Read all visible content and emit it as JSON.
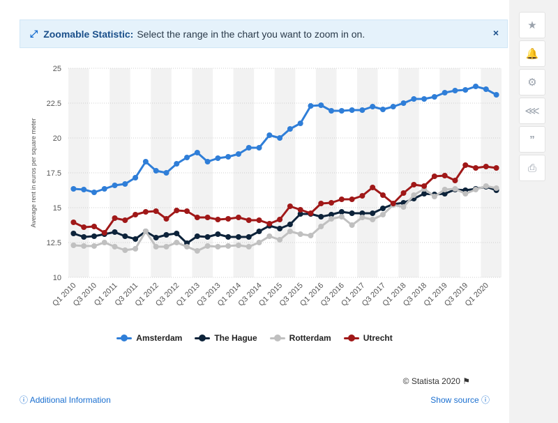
{
  "banner": {
    "title": "Zoomable Statistic:",
    "text": "Select the range in the chart you want to zoom in on.",
    "close": "×",
    "zoom_icon": "expand-arrows-icon"
  },
  "colors": {
    "Amsterdam": "#2f7ed8",
    "The Hague": "#0d233a",
    "Rotterdam": "#c0c0c0",
    "Utrecht": "#a01818",
    "band": "#f2f2f2",
    "grid": "#cfcfcf",
    "link": "#1a6fd0"
  },
  "chart_data": {
    "type": "line",
    "ylabel": "Average rent in euros per square meter",
    "xlabel": "",
    "ylim": [
      10,
      25
    ],
    "yticks": [
      10,
      12.5,
      15,
      17.5,
      20,
      22.5,
      25
    ],
    "grid": "horizontal dotted",
    "legend_position": "bottom-center",
    "x": [
      "Q1 2010",
      "Q2 2010",
      "Q3 2010",
      "Q4 2010",
      "Q1 2011",
      "Q2 2011",
      "Q3 2011",
      "Q4 2011",
      "Q1 2012",
      "Q2 2012",
      "Q3 2012",
      "Q4 2012",
      "Q1 2013",
      "Q2 2013",
      "Q3 2013",
      "Q4 2013",
      "Q1 2014",
      "Q2 2014",
      "Q3 2014",
      "Q4 2014",
      "Q1 2015",
      "Q2 2015",
      "Q3 2015",
      "Q4 2015",
      "Q1 2016",
      "Q2 2016",
      "Q3 2016",
      "Q4 2016",
      "Q1 2017",
      "Q2 2017",
      "Q3 2017",
      "Q4 2017",
      "Q1 2018",
      "Q2 2018",
      "Q3 2018",
      "Q4 2018",
      "Q1 2019",
      "Q2 2019",
      "Q3 2019",
      "Q4 2019",
      "Q1 2020",
      "Q2 2020"
    ],
    "x_tick_labels": [
      "Q1 2010",
      "Q3 2010",
      "Q1 2011",
      "Q3 2011",
      "Q1 2012",
      "Q3 2012",
      "Q1 2013",
      "Q3 2013",
      "Q1 2014",
      "Q3 2014",
      "Q1 2015",
      "Q3 2015",
      "Q1 2016",
      "Q3 2016",
      "Q1 2017",
      "Q3 2017",
      "Q1 2018",
      "Q3 2018",
      "Q1 2019",
      "Q3 2019",
      "Q1 2020"
    ],
    "series": [
      {
        "name": "Amsterdam",
        "values": [
          16.35,
          16.3,
          16.1,
          16.35,
          16.6,
          16.7,
          17.15,
          18.3,
          17.65,
          17.5,
          18.15,
          18.6,
          18.95,
          18.3,
          18.55,
          18.65,
          18.85,
          19.3,
          19.3,
          20.2,
          20.0,
          20.65,
          21.05,
          22.3,
          22.35,
          21.95,
          21.95,
          22.0,
          22.0,
          22.25,
          22.05,
          22.25,
          22.5,
          22.8,
          22.8,
          22.95,
          23.25,
          23.4,
          23.45,
          23.7,
          23.5,
          23.1
        ]
      },
      {
        "name": "The Hague",
        "values": [
          13.15,
          12.9,
          12.95,
          13.1,
          13.25,
          12.95,
          12.75,
          13.3,
          12.85,
          13.05,
          13.15,
          12.45,
          12.95,
          12.9,
          13.1,
          12.9,
          12.9,
          12.9,
          13.3,
          13.7,
          13.5,
          13.8,
          14.55,
          14.55,
          14.35,
          14.5,
          14.7,
          14.6,
          14.6,
          14.6,
          14.95,
          15.25,
          15.35,
          15.65,
          16.0,
          15.95,
          16.0,
          16.3,
          16.25,
          16.35,
          16.5,
          16.25
        ]
      },
      {
        "name": "Rotterdam",
        "values": [
          12.3,
          12.25,
          12.25,
          12.5,
          12.2,
          11.95,
          12.05,
          13.3,
          12.2,
          12.2,
          12.5,
          12.2,
          11.9,
          12.25,
          12.2,
          12.25,
          12.3,
          12.2,
          12.5,
          12.95,
          12.7,
          13.3,
          13.1,
          13.0,
          13.65,
          14.2,
          14.35,
          13.75,
          14.3,
          14.15,
          14.5,
          15.2,
          15.05,
          15.9,
          16.35,
          15.8,
          16.3,
          16.35,
          16.0,
          16.3,
          16.55,
          16.4
        ]
      },
      {
        "name": "Utrecht",
        "values": [
          13.95,
          13.6,
          13.65,
          13.2,
          14.25,
          14.1,
          14.5,
          14.7,
          14.75,
          14.2,
          14.8,
          14.75,
          14.3,
          14.3,
          14.15,
          14.2,
          14.3,
          14.1,
          14.1,
          13.85,
          14.15,
          15.1,
          14.85,
          14.6,
          15.3,
          15.35,
          15.6,
          15.6,
          15.85,
          16.45,
          15.9,
          15.3,
          16.05,
          16.65,
          16.55,
          17.25,
          17.3,
          16.95,
          18.05,
          17.85,
          17.95,
          17.85
        ]
      }
    ]
  },
  "legend": [
    "Amsterdam",
    "The Hague",
    "Rotterdam",
    "Utrecht"
  ],
  "credit": "© Statista 2020",
  "footer": {
    "additional_info": "Additional Information",
    "show_source": "Show source"
  },
  "sidebar": {
    "icons": [
      "star-icon",
      "bell-icon",
      "gear-icon",
      "share-icon",
      "quote-icon",
      "print-icon"
    ]
  }
}
